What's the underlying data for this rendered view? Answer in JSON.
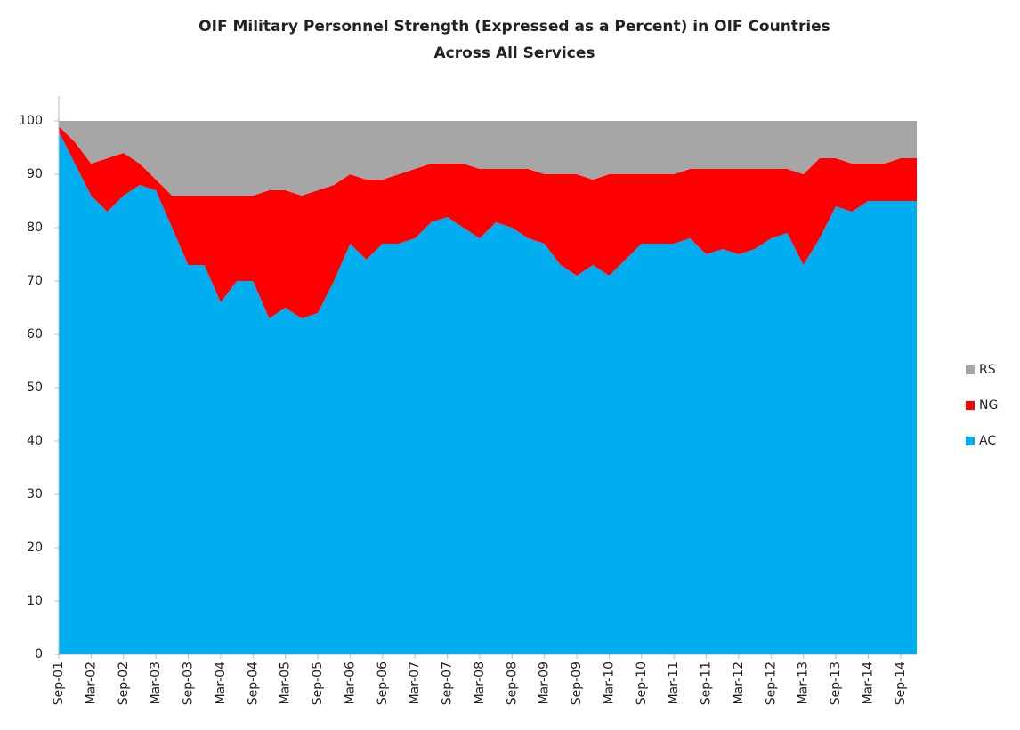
{
  "chart_data": {
    "type": "stacked_area",
    "title": [
      "OIF Military Personnel Strength (Expressed as a Percent) in OIF Countries",
      "Across All Services"
    ],
    "categories": [
      "Sep-01",
      null,
      "Mar-02",
      null,
      "Sep-02",
      null,
      "Mar-03",
      null,
      "Sep-03",
      null,
      "Mar-04",
      null,
      "Sep-04",
      null,
      "Mar-05",
      null,
      "Sep-05",
      null,
      "Mar-06",
      null,
      "Sep-06",
      null,
      "Mar-07",
      null,
      "Sep-07",
      null,
      "Mar-08",
      null,
      "Sep-08",
      null,
      "Mar-09",
      null,
      "Sep-09",
      null,
      "Mar-10",
      null,
      "Sep-10",
      null,
      "Mar-11",
      null,
      "Sep-11",
      null,
      "Mar-12",
      null,
      "Sep-12",
      null,
      "Mar-13",
      null,
      "Sep-13",
      null,
      "Mar-14",
      null,
      "Sep-14",
      null
    ],
    "series": [
      {
        "name": "AC",
        "color": "#00adef",
        "values": [
          98,
          92,
          86,
          83,
          86,
          88,
          87,
          80,
          73,
          73,
          66,
          70,
          70,
          63,
          65,
          63,
          64,
          70,
          77,
          74,
          77,
          77,
          78,
          81,
          82,
          80,
          78,
          81,
          80,
          78,
          77,
          73,
          71,
          73,
          71,
          74,
          77,
          77,
          77,
          78,
          75,
          76,
          75,
          76,
          78,
          79,
          73,
          78,
          84,
          83,
          85,
          85,
          85,
          85
        ]
      },
      {
        "name": "NG",
        "color": "#ff0000",
        "values": [
          1,
          4,
          6,
          10,
          8,
          4,
          2,
          6,
          13,
          13,
          20,
          16,
          16,
          24,
          22,
          23,
          23,
          18,
          13,
          15,
          12,
          13,
          13,
          11,
          10,
          12,
          13,
          10,
          11,
          13,
          13,
          17,
          19,
          16,
          19,
          16,
          13,
          13,
          13,
          13,
          16,
          15,
          16,
          15,
          13,
          12,
          17,
          15,
          9,
          9,
          7,
          7,
          8,
          8
        ]
      },
      {
        "name": "RS",
        "color": "#a6a6a6",
        "values": [
          1,
          4,
          8,
          7,
          6,
          8,
          11,
          14,
          14,
          14,
          14,
          14,
          14,
          13,
          13,
          14,
          13,
          12,
          10,
          11,
          11,
          10,
          9,
          8,
          8,
          8,
          9,
          9,
          9,
          9,
          10,
          10,
          10,
          11,
          10,
          10,
          10,
          10,
          10,
          9,
          9,
          9,
          9,
          9,
          9,
          9,
          10,
          7,
          7,
          8,
          8,
          8,
          7,
          7
        ]
      }
    ],
    "ylim": [
      0,
      100
    ],
    "yticks": [
      0,
      10,
      20,
      30,
      40,
      50,
      60,
      70,
      80,
      90,
      100
    ],
    "grid": false,
    "legend": "right"
  }
}
